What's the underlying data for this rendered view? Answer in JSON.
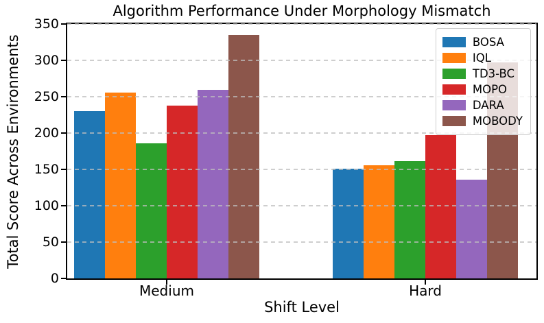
{
  "chart_data": {
    "type": "bar",
    "title": "Algorithm Performance Under Morphology Mismatch",
    "xlabel": "Shift Level",
    "ylabel": "Total Score Across Environments",
    "categories": [
      "Medium",
      "Hard"
    ],
    "series": [
      {
        "name": "BOSA",
        "color": "#1f77b4",
        "values": [
          230,
          151
        ]
      },
      {
        "name": "IQL",
        "color": "#ff7f0e",
        "values": [
          256,
          156
        ]
      },
      {
        "name": "TD3-BC",
        "color": "#2ca02c",
        "values": [
          186,
          161
        ]
      },
      {
        "name": "MOPO",
        "color": "#d62728",
        "values": [
          238,
          197
        ]
      },
      {
        "name": "DARA",
        "color": "#9467bd",
        "values": [
          259,
          136
        ]
      },
      {
        "name": "MOBODY",
        "color": "#8c564b",
        "values": [
          335,
          297
        ]
      }
    ],
    "ylim": [
      0,
      350
    ],
    "yticks": [
      0,
      50,
      100,
      150,
      200,
      250,
      300,
      350
    ],
    "grid": "horizontal-dashed",
    "grid_over_bars": true,
    "legend_position": "upper right",
    "background_color": "#ffffff",
    "axis_color": "#000000"
  }
}
